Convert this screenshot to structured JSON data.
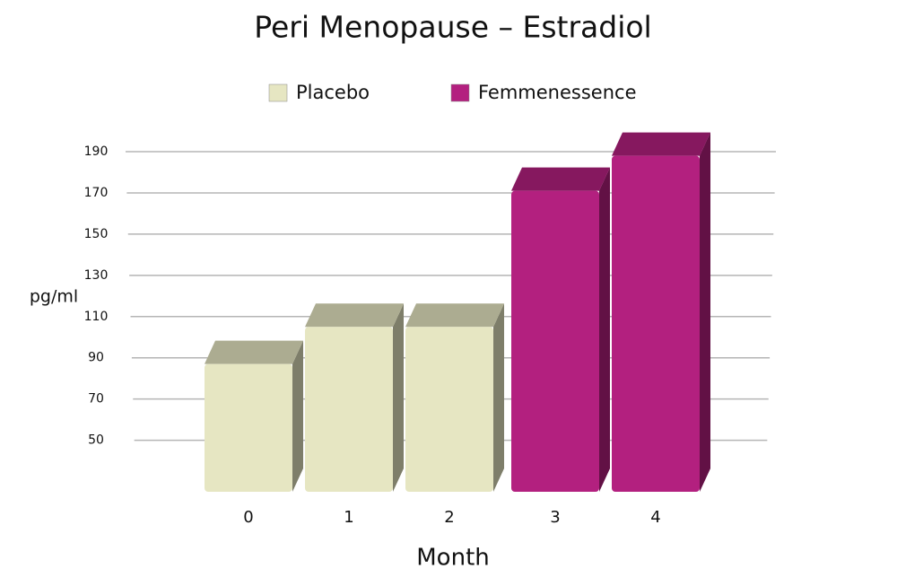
{
  "chart_data": {
    "type": "bar",
    "title": "Peri Menopause – Estradiol",
    "categories": [
      "0",
      "1",
      "2",
      "3",
      "4"
    ],
    "series": [
      {
        "name": "Placebo",
        "color": "#e6e6c2",
        "values": [
          87,
          105,
          105,
          null,
          null
        ]
      },
      {
        "name": "Femmenessence",
        "color": "#b3207f",
        "values": [
          null,
          null,
          null,
          171,
          188
        ]
      }
    ],
    "y_label": "pg/ml",
    "x_label": "Month",
    "ylim": [
      25,
      190
    ],
    "yticks": [
      50,
      70,
      90,
      110,
      130,
      150,
      170,
      190
    ],
    "grid": true
  }
}
